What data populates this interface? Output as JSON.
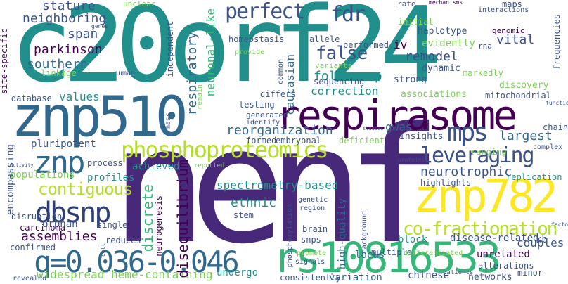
{
  "palette": {
    "teal": "#21908c",
    "dark_purple": "#440154",
    "indigo": "#3b528b",
    "blue": "#31688e",
    "deep_blue": "#2c3f7a",
    "green": "#35b779",
    "light_green": "#7ad151",
    "yellow_green": "#b5de2b",
    "yellow": "#fde725",
    "violet": "#482878"
  },
  "words": [
    {
      "text": "c20orf24"
    },
    {
      "text": "nenf"
    },
    {
      "text": "znp510"
    },
    {
      "text": "respirasome"
    },
    {
      "text": "rs10816533"
    },
    {
      "text": "phosphoproteomics"
    },
    {
      "text": "znp782"
    },
    {
      "text": "q=0.036-0.046"
    },
    {
      "text": "dbsnp"
    },
    {
      "text": "perfect"
    },
    {
      "text": "fdr"
    },
    {
      "text": "mps"
    },
    {
      "text": "leveraging"
    },
    {
      "text": "znp"
    },
    {
      "text": "co-fractionation"
    },
    {
      "text": "contiguous"
    },
    {
      "text": "false"
    },
    {
      "text": "parkinson"
    },
    {
      "text": "stature"
    },
    {
      "text": "neighboring"
    },
    {
      "text": "reorganization"
    },
    {
      "text": "widespread heme-containing"
    },
    {
      "text": "assemblies"
    },
    {
      "text": "disequilibrium"
    },
    {
      "text": "discrete"
    },
    {
      "text": "neuronal-like"
    },
    {
      "text": "respiratory"
    },
    {
      "text": "caucasian"
    },
    {
      "text": "follow-up"
    },
    {
      "text": "correction"
    },
    {
      "text": "southern"
    },
    {
      "text": "span"
    },
    {
      "text": "values"
    },
    {
      "text": "vital"
    },
    {
      "text": "remodel"
    },
    {
      "text": "largest"
    },
    {
      "text": "neurotrophic"
    },
    {
      "text": "ethnic"
    },
    {
      "text": "couples"
    },
    {
      "text": "spectrometry-based"
    },
    {
      "text": "gwas"
    },
    {
      "text": "iv"
    },
    {
      "text": "locus"
    },
    {
      "text": "variation"
    },
    {
      "text": "block"
    },
    {
      "text": "disease-related"
    },
    {
      "text": "high-quality"
    },
    {
      "text": "unrelated"
    },
    {
      "text": "chinese"
    },
    {
      "text": "networks"
    },
    {
      "text": "consistently"
    },
    {
      "text": "undergo"
    },
    {
      "text": "populations"
    },
    {
      "text": "pluripotent"
    },
    {
      "text": "encompassing"
    },
    {
      "text": "profiles"
    },
    {
      "text": "achieved"
    },
    {
      "text": "orphan"
    },
    {
      "text": "embryonal"
    },
    {
      "text": "insights"
    },
    {
      "text": "evidently"
    },
    {
      "text": "haplotype"
    },
    {
      "text": "initial"
    },
    {
      "text": "dynamic"
    },
    {
      "text": "strong"
    },
    {
      "text": "associations"
    },
    {
      "text": "discovery"
    },
    {
      "text": "mitochondrial"
    },
    {
      "text": "highlights"
    },
    {
      "text": "replication"
    },
    {
      "text": "ranging"
    },
    {
      "text": "database"
    },
    {
      "text": "linkage"
    },
    {
      "text": "differs"
    },
    {
      "text": "testing"
    },
    {
      "text": "generated"
    },
    {
      "text": "identify"
    },
    {
      "text": "formed"
    },
    {
      "text": "deficient"
    },
    {
      "text": "sequencing"
    },
    {
      "text": "variants"
    },
    {
      "text": "performed"
    },
    {
      "text": "homeostasis"
    },
    {
      "text": "allele"
    },
    {
      "text": "unclear"
    },
    {
      "text": "maps"
    },
    {
      "text": "rate"
    },
    {
      "text": "frequencies"
    },
    {
      "text": "genomic"
    },
    {
      "text": "rna"
    },
    {
      "text": "markedly"
    },
    {
      "text": "site-specific"
    },
    {
      "text": "independent"
    },
    {
      "text": "genes"
    },
    {
      "text": "human"
    },
    {
      "text": "provide"
    },
    {
      "text": "common"
    },
    {
      "text": "remain"
    },
    {
      "text": "mass"
    },
    {
      "text": "stem"
    },
    {
      "text": "genetic"
    },
    {
      "text": "region"
    },
    {
      "text": "brain"
    },
    {
      "text": "snps"
    },
    {
      "text": "promote"
    },
    {
      "text": "signals"
    },
    {
      "text": "neurogenesis"
    },
    {
      "text": "phosphorylation"
    },
    {
      "text": "background"
    },
    {
      "text": "multiple"
    },
    {
      "text": "differentiated"
    },
    {
      "text": "alterations"
    },
    {
      "text": "minor"
    },
    {
      "text": "kb"
    },
    {
      "text": "factor"
    },
    {
      "text": "chain"
    },
    {
      "text": "complex"
    },
    {
      "text": "function"
    },
    {
      "text": "proteins"
    },
    {
      "text": "studies"
    },
    {
      "text": "patients"
    },
    {
      "text": "reduces"
    },
    {
      "text": "confirmed"
    },
    {
      "text": "revealed"
    },
    {
      "text": "carcinoma"
    },
    {
      "text": "single"
    },
    {
      "text": "disruption"
    },
    {
      "text": "process"
    },
    {
      "text": "activity"
    },
    {
      "text": "reported"
    },
    {
      "text": "interactions"
    },
    {
      "text": "mechanisms"
    },
    {
      "text": "cell"
    }
  ]
}
